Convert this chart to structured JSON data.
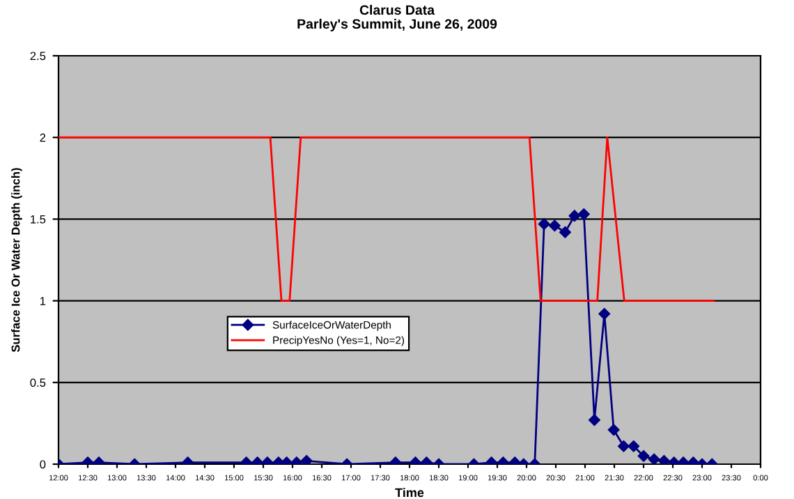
{
  "chart_data": {
    "type": "line",
    "title": "Clarus Data",
    "subtitle": "Parley's Summit, June 26, 2009",
    "xlabel": "Time",
    "ylabel": "Surface Ice Or Water Depth (inch)",
    "series": [
      {
        "name": "SurfaceIceOrWaterDepth",
        "color": "#000080",
        "marker": "diamond",
        "x": [
          12.0,
          12.5,
          12.69,
          13.3,
          14.21,
          15.21,
          15.4,
          15.57,
          15.76,
          15.9,
          16.07,
          16.24,
          16.93,
          17.76,
          18.1,
          18.29,
          18.5,
          19.1,
          19.4,
          19.6,
          19.8,
          19.95,
          20.14,
          20.3,
          20.48,
          20.66,
          20.82,
          20.98,
          21.16,
          21.33,
          21.49,
          21.66,
          21.83,
          22.0,
          22.18,
          22.35,
          22.52,
          22.68,
          22.85,
          23.0,
          23.17
        ],
        "values": [
          0,
          0.01,
          0.01,
          0,
          0.01,
          0.01,
          0.01,
          0.01,
          0.01,
          0.01,
          0.01,
          0.02,
          0,
          0.01,
          0.01,
          0.01,
          0,
          0,
          0.01,
          0.01,
          0.01,
          0,
          0,
          1.47,
          1.46,
          1.42,
          1.52,
          1.53,
          0.27,
          0.92,
          0.21,
          0.11,
          0.11,
          0.05,
          0.03,
          0.02,
          0.01,
          0.01,
          0.01,
          0,
          0
        ]
      },
      {
        "name": "PrecipYesNo (Yes=1, No=2)",
        "color": "#ff0000",
        "marker": "none",
        "x": [
          12.0,
          15.62,
          15.81,
          15.95,
          16.14,
          20.05,
          20.24,
          21.21,
          21.38,
          21.67,
          23.2
        ],
        "values": [
          2,
          2,
          1,
          1,
          2,
          2,
          1,
          1,
          2,
          1,
          1
        ]
      }
    ],
    "xlim": [
      12,
      24
    ],
    "xticks": [
      {
        "value": 12,
        "label": "12:00"
      },
      {
        "value": 12.5,
        "label": "12:30"
      },
      {
        "value": 13,
        "label": "13:00"
      },
      {
        "value": 13.5,
        "label": "13:30"
      },
      {
        "value": 14,
        "label": "14:00"
      },
      {
        "value": 14.5,
        "label": "14:30"
      },
      {
        "value": 15,
        "label": "15:00"
      },
      {
        "value": 15.5,
        "label": "15:30"
      },
      {
        "value": 16,
        "label": "16:00"
      },
      {
        "value": 16.5,
        "label": "16:30"
      },
      {
        "value": 17,
        "label": "17:00"
      },
      {
        "value": 17.5,
        "label": "17:30"
      },
      {
        "value": 18,
        "label": "18:00"
      },
      {
        "value": 18.5,
        "label": "18:30"
      },
      {
        "value": 19,
        "label": "19:00"
      },
      {
        "value": 19.5,
        "label": "19:30"
      },
      {
        "value": 20,
        "label": "20:00"
      },
      {
        "value": 20.5,
        "label": "20:30"
      },
      {
        "value": 21,
        "label": "21:00"
      },
      {
        "value": 21.5,
        "label": "21:30"
      },
      {
        "value": 22,
        "label": "22:00"
      },
      {
        "value": 22.5,
        "label": "22:30"
      },
      {
        "value": 23,
        "label": "23:00"
      },
      {
        "value": 23.5,
        "label": "23:30"
      },
      {
        "value": 24,
        "label": "0:00"
      }
    ],
    "ylim": [
      0,
      2.5
    ],
    "yticks": [
      0,
      0.5,
      1,
      1.5,
      2,
      2.5
    ],
    "grid": "y",
    "legend": "center",
    "line_style": "solid"
  }
}
